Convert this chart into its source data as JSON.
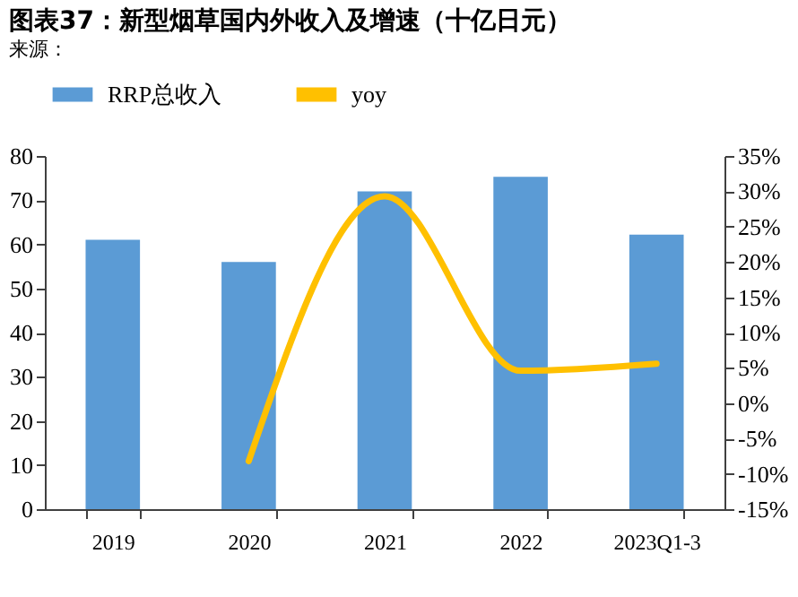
{
  "chart_data": {
    "type": "bar",
    "title": "图表37：新型烟草国内外收入及增速（十亿日元）",
    "categories": [
      "2019",
      "2020",
      "2021",
      "2022",
      "2023Q1-3"
    ],
    "series": [
      {
        "name": "RRP总收入",
        "color": "#5b9bd5",
        "values": [
          61,
          56,
          72,
          75.3,
          62.2
        ]
      },
      {
        "name": "yoy",
        "type": "line",
        "axis": "y2",
        "color": "#ffc000",
        "values": [
          null,
          -8.2,
          29.3,
          4.6,
          5.6
        ]
      }
    ],
    "ylim": [
      0,
      80
    ],
    "yticks": [
      0,
      10,
      20,
      30,
      40,
      50,
      60,
      70,
      80
    ],
    "y2lim": [
      -15,
      35
    ],
    "y2ticks": [
      {
        "value": -15,
        "label": "-15%"
      },
      {
        "value": -10,
        "label": "-10%"
      },
      {
        "value": -5,
        "label": "-5%"
      },
      {
        "value": 0,
        "label": "0%"
      },
      {
        "value": 5,
        "label": "5%"
      },
      {
        "value": 10,
        "label": "10%"
      },
      {
        "value": 15,
        "label": "15%"
      },
      {
        "value": 20,
        "label": "20%"
      },
      {
        "value": 25,
        "label": "25%"
      },
      {
        "value": 30,
        "label": "30%"
      },
      {
        "value": 35,
        "label": "35%"
      }
    ],
    "legend": "top",
    "grid": false,
    "annotations": [
      "来源："
    ]
  }
}
